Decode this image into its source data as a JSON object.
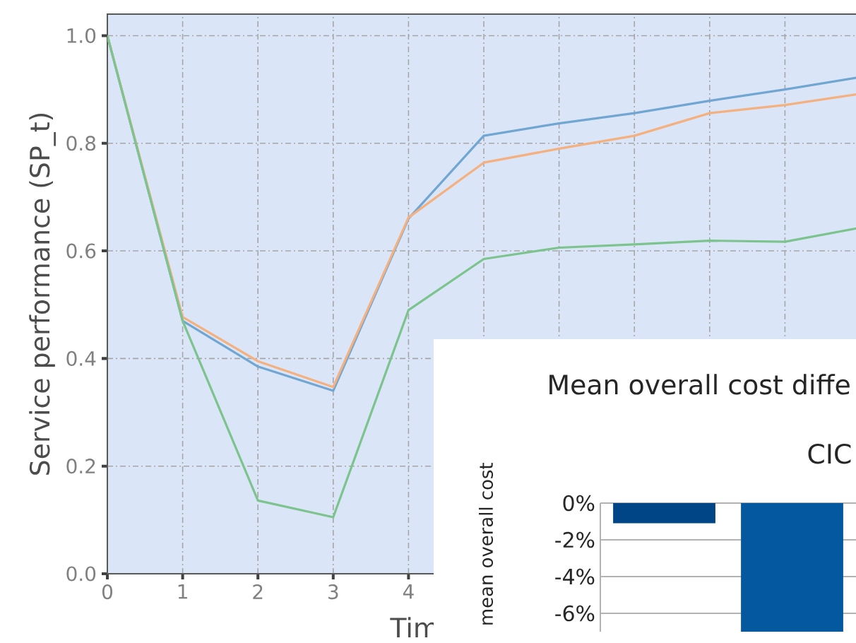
{
  "chart_data": [
    {
      "type": "line",
      "xlabel": "Tim",
      "ylabel": "Service performance (SP_t)",
      "x": [
        0,
        1,
        2,
        3,
        4,
        5,
        6,
        7,
        8,
        9,
        10
      ],
      "series": [
        {
          "color": "#71a6d2",
          "values": [
            1.0,
            0.47,
            0.385,
            0.34,
            0.66,
            0.814,
            0.837,
            0.856,
            0.879,
            0.9,
            0.923
          ]
        },
        {
          "color": "#f4b07e",
          "values": [
            1.0,
            0.477,
            0.395,
            0.347,
            0.662,
            0.764,
            0.79,
            0.814,
            0.856,
            0.871,
            0.892
          ]
        },
        {
          "color": "#7cc38e",
          "values": [
            1.0,
            0.47,
            0.136,
            0.105,
            0.49,
            0.585,
            0.606,
            0.612,
            0.619,
            0.617,
            0.643
          ]
        }
      ],
      "xlim": [
        0,
        10
      ],
      "ylim": [
        0,
        1.04
      ],
      "xticks": [
        0,
        1,
        2,
        3,
        4,
        {
          "value": 5,
          "label": null
        },
        {
          "value": 6,
          "label": null
        },
        {
          "value": 7,
          "label": null
        },
        {
          "value": 8,
          "label": null
        },
        {
          "value": 9,
          "label": null
        },
        {
          "value": 10,
          "label": null
        }
      ],
      "yticks": [
        {
          "value": 0,
          "label": "0.0"
        },
        {
          "value": 0.2,
          "label": "0.2"
        },
        {
          "value": 0.4,
          "label": "0.4"
        },
        {
          "value": 0.6,
          "label": "0.6"
        },
        {
          "value": 0.8,
          "label": "0.8"
        },
        {
          "value": 1.0,
          "label": "1.0"
        }
      ],
      "grid": true
    },
    {
      "type": "bar",
      "title": "Mean overall cost diffe",
      "subtitle": "CIC",
      "ylabel": "mean overall cost",
      "categories": [
        null,
        null
      ],
      "values": [
        -1.1,
        -7
      ],
      "colors": [
        "#004586",
        "#0458a0"
      ],
      "ylim": [
        -7,
        0
      ],
      "yticks": [
        {
          "value": 0,
          "label": "0%"
        },
        {
          "value": -2,
          "label": "-2%"
        },
        {
          "value": -4,
          "label": "-4%"
        },
        {
          "value": -6,
          "label": "-6%"
        }
      ],
      "grid": "y"
    }
  ]
}
